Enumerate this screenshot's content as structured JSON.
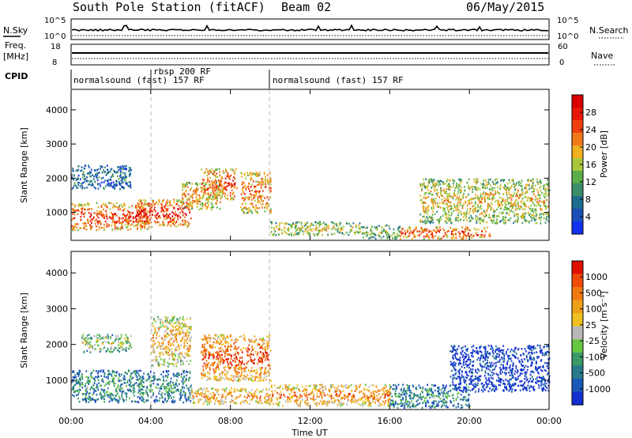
{
  "header": {
    "title": "South Pole Station (fitACF)",
    "beam": "Beam 02",
    "date": "06/May/2015"
  },
  "top_panel": {
    "nsky_label": "N.Sky",
    "nsky_ticks": [
      "10^5",
      "10^0"
    ],
    "nsearch_label": "N.Search",
    "nsearch_ticks": [
      "10^5",
      "10^0"
    ],
    "freq_label_1": "Freq.",
    "freq_label_2": "[MHz]",
    "freq_ticks": [
      "18",
      "8"
    ],
    "nave_label": "Nave",
    "nave_ticks": [
      "60",
      "0"
    ],
    "cpid_label": "CPID",
    "cpid_segments": [
      {
        "label": "normalsound (fast) 157 RF",
        "start_h": 0,
        "end_h": 10
      },
      {
        "label": "rbsp 200 RF",
        "start_h": 4,
        "end_h": 4.1
      },
      {
        "label": "normalsound (fast) 157 RF",
        "start_h": 10,
        "end_h": 24
      }
    ]
  },
  "x_axis": {
    "label": "Time UT",
    "ticks": [
      "00:00",
      "04:00",
      "08:00",
      "12:00",
      "16:00",
      "20:00",
      "00:00"
    ]
  },
  "chart_data": [
    {
      "type": "heatmap",
      "name": "power-panel",
      "ylabel": "Slant Range [km]",
      "yticks": [
        1000,
        2000,
        3000,
        4000
      ],
      "ylim": [
        180,
        4600
      ],
      "xlim": [
        0,
        24
      ],
      "colorbar": {
        "label": "Power [dB]",
        "ticks": [
          "4",
          "8",
          "12",
          "16",
          "20",
          "24",
          "28"
        ],
        "colors": [
          "#1430f0",
          "#1a50b8",
          "#1e6e90",
          "#3a8e6a",
          "#5aae4a",
          "#a8c83a",
          "#f0b020",
          "#f07a18",
          "#f04010",
          "#e81808",
          "#d80000"
        ]
      },
      "echo_regions": [
        {
          "t0": 0,
          "t1": 4,
          "r0": 500,
          "r1": 1300,
          "level": 0.85
        },
        {
          "t0": 0,
          "t1": 3,
          "r0": 1700,
          "r1": 2400,
          "level": 0.25
        },
        {
          "t0": 3.2,
          "t1": 6,
          "r0": 600,
          "r1": 1400,
          "level": 0.9
        },
        {
          "t0": 5.5,
          "t1": 7.5,
          "r0": 1100,
          "r1": 1900,
          "level": 0.7
        },
        {
          "t0": 6.5,
          "t1": 8.3,
          "r0": 1400,
          "r1": 2300,
          "level": 0.8
        },
        {
          "t0": 8.5,
          "t1": 10,
          "r0": 1000,
          "r1": 2200,
          "level": 0.75
        },
        {
          "t0": 10,
          "t1": 14.5,
          "r0": 350,
          "r1": 750,
          "level": 0.55
        },
        {
          "t0": 14.5,
          "t1": 16.5,
          "r0": 250,
          "r1": 650,
          "level": 0.45
        },
        {
          "t0": 16.5,
          "t1": 21,
          "r0": 250,
          "r1": 600,
          "level": 0.85
        },
        {
          "t0": 17.5,
          "t1": 24,
          "r0": 700,
          "r1": 2000,
          "level": 0.6
        }
      ]
    },
    {
      "type": "heatmap",
      "name": "velocity-panel",
      "ylabel": "Slant Range [km]",
      "yticks": [
        1000,
        2000,
        3000,
        4000
      ],
      "ylim": [
        180,
        4600
      ],
      "xlim": [
        0,
        24
      ],
      "colorbar": {
        "label": "Velocity [m s⁻¹]",
        "ticks": [
          "1000",
          "500",
          "100",
          "25",
          "-25",
          "-100",
          "-500",
          "-1000"
        ],
        "colors": [
          "#1430d0",
          "#1a5ab8",
          "#2a7a8e",
          "#3a9a66",
          "#66c840",
          "#b8b8b8",
          "#f0c020",
          "#f0a018",
          "#f07a10",
          "#f04a08",
          "#e01000"
        ]
      },
      "echo_regions": [
        {
          "t0": 0,
          "t1": 6,
          "r0": 400,
          "r1": 1300,
          "level": 0.3
        },
        {
          "t0": 0.5,
          "t1": 3,
          "r0": 1800,
          "r1": 2300,
          "level": 0.5
        },
        {
          "t0": 4,
          "t1": 6,
          "r0": 1400,
          "r1": 2800,
          "level": 0.7
        },
        {
          "t0": 6.5,
          "t1": 10,
          "r0": 1000,
          "r1": 2300,
          "level": 0.9
        },
        {
          "t0": 6,
          "t1": 10,
          "r0": 350,
          "r1": 800,
          "level": 0.75
        },
        {
          "t0": 10,
          "t1": 16,
          "r0": 300,
          "r1": 900,
          "level": 0.8
        },
        {
          "t0": 16,
          "t1": 20,
          "r0": 250,
          "r1": 900,
          "level": 0.3
        },
        {
          "t0": 19,
          "t1": 24,
          "r0": 700,
          "r1": 2000,
          "level": 0.05
        }
      ]
    }
  ]
}
